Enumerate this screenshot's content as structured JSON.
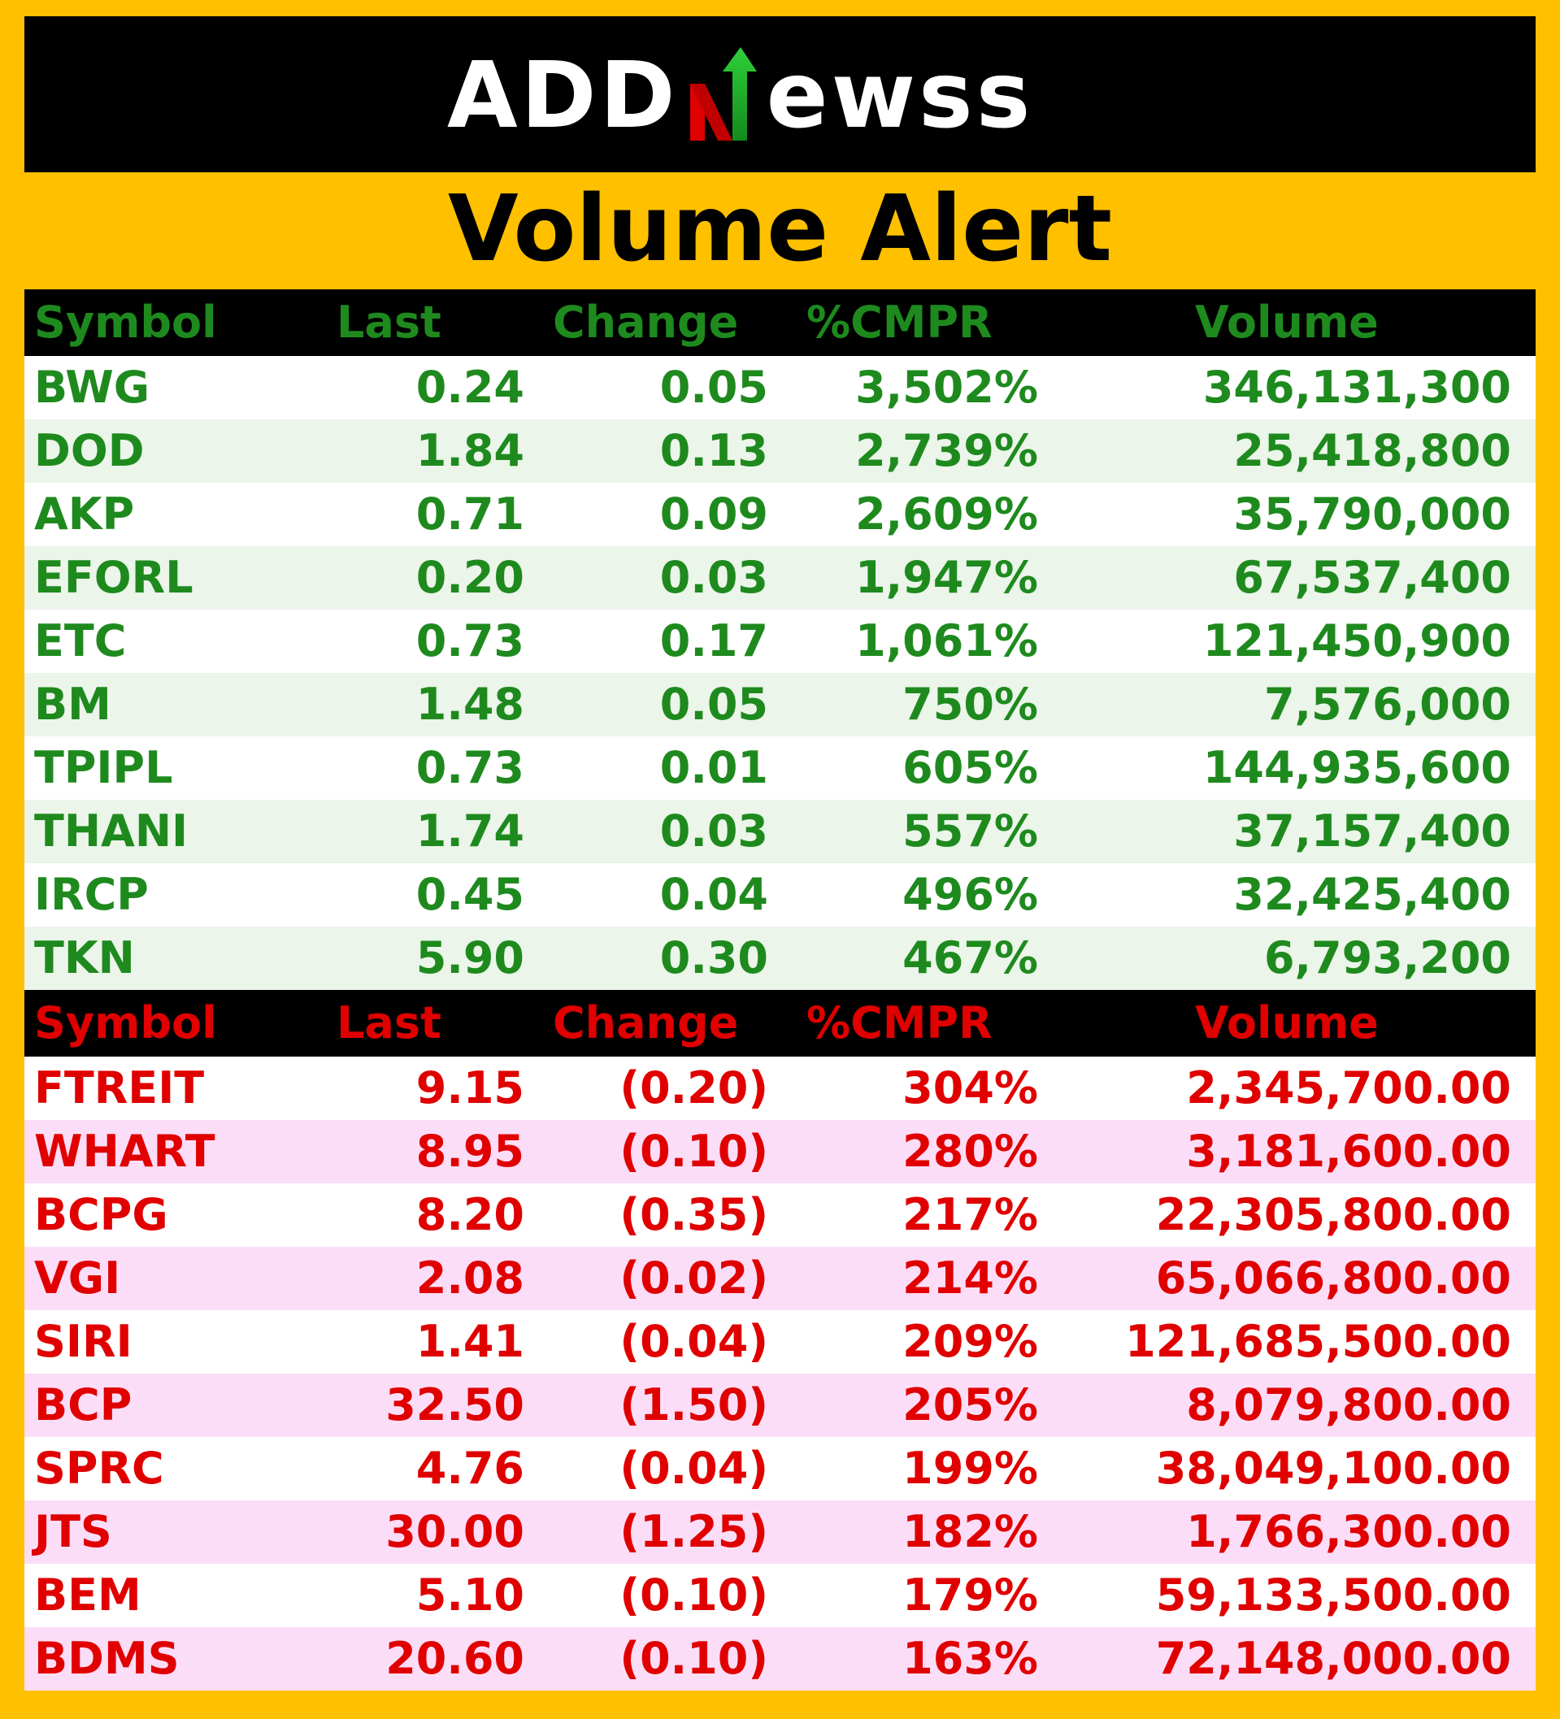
{
  "brand": {
    "logo_left": "ADD",
    "logo_right": "ewss"
  },
  "title": "Volume Alert",
  "colors": {
    "background": "#FFC000",
    "gainer_text": "#1E8A1E",
    "loser_text": "#E00000",
    "header_bg": "#000000",
    "gainer_stripe": "#EBF5E9",
    "loser_stripe": "#FCDDF7"
  },
  "gainers": {
    "headers": [
      "Symbol",
      "Last",
      "Change",
      "%CMPR",
      "Volume"
    ],
    "rows": [
      [
        "BWG",
        "0.24",
        "0.05",
        "3,502%",
        "346,131,300"
      ],
      [
        "DOD",
        "1.84",
        "0.13",
        "2,739%",
        "25,418,800"
      ],
      [
        "AKP",
        "0.71",
        "0.09",
        "2,609%",
        "35,790,000"
      ],
      [
        "EFORL",
        "0.20",
        "0.03",
        "1,947%",
        "67,537,400"
      ],
      [
        "ETC",
        "0.73",
        "0.17",
        "1,061%",
        "121,450,900"
      ],
      [
        "BM",
        "1.48",
        "0.05",
        "750%",
        "7,576,000"
      ],
      [
        "TPIPL",
        "0.73",
        "0.01",
        "605%",
        "144,935,600"
      ],
      [
        "THANI",
        "1.74",
        "0.03",
        "557%",
        "37,157,400"
      ],
      [
        "IRCP",
        "0.45",
        "0.04",
        "496%",
        "32,425,400"
      ],
      [
        "TKN",
        "5.90",
        "0.30",
        "467%",
        "6,793,200"
      ]
    ]
  },
  "losers": {
    "headers": [
      "Symbol",
      "Last",
      "Change",
      "%CMPR",
      "Volume"
    ],
    "rows": [
      [
        "FTREIT",
        "9.15",
        "(0.20)",
        "304%",
        "2,345,700.00"
      ],
      [
        "WHART",
        "8.95",
        "(0.10)",
        "280%",
        "3,181,600.00"
      ],
      [
        "BCPG",
        "8.20",
        "(0.35)",
        "217%",
        "22,305,800.00"
      ],
      [
        "VGI",
        "2.08",
        "(0.02)",
        "214%",
        "65,066,800.00"
      ],
      [
        "SIRI",
        "1.41",
        "(0.04)",
        "209%",
        "121,685,500.00"
      ],
      [
        "BCP",
        "32.50",
        "(1.50)",
        "205%",
        "8,079,800.00"
      ],
      [
        "SPRC",
        "4.76",
        "(0.04)",
        "199%",
        "38,049,100.00"
      ],
      [
        "JTS",
        "30.00",
        "(1.25)",
        "182%",
        "1,766,300.00"
      ],
      [
        "BEM",
        "5.10",
        "(0.10)",
        "179%",
        "59,133,500.00"
      ],
      [
        "BDMS",
        "20.60",
        "(0.10)",
        "163%",
        "72,148,000.00"
      ]
    ]
  }
}
